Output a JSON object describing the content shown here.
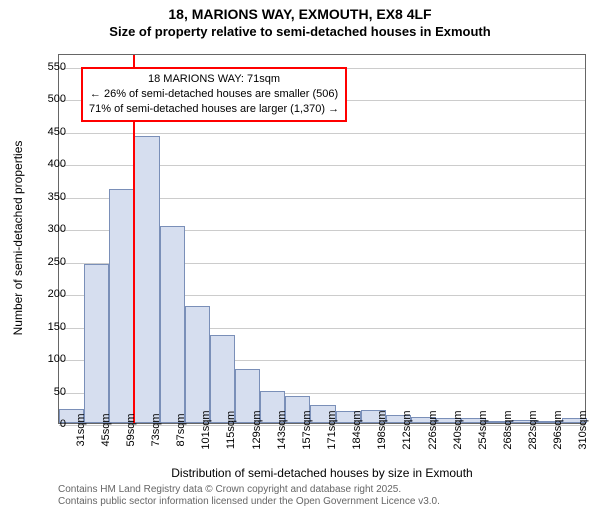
{
  "title_main": "18, MARIONS WAY, EXMOUTH, EX8 4LF",
  "title_sub": "Size of property relative to semi-detached houses in Exmouth",
  "yaxis_label": "Number of semi-detached properties",
  "xaxis_label": "Distribution of semi-detached houses by size in Exmouth",
  "footer_line1": "Contains HM Land Registry data © Crown copyright and database right 2025.",
  "footer_line2": "Contains public sector information licensed under the Open Government Licence v3.0.",
  "chart": {
    "type": "histogram",
    "ylim": [
      0,
      570
    ],
    "yticks": [
      0,
      50,
      100,
      150,
      200,
      250,
      300,
      350,
      400,
      450,
      500,
      550
    ],
    "xcategories": [
      "31sqm",
      "45sqm",
      "59sqm",
      "73sqm",
      "87sqm",
      "101sqm",
      "115sqm",
      "129sqm",
      "143sqm",
      "157sqm",
      "171sqm",
      "184sqm",
      "198sqm",
      "212sqm",
      "226sqm",
      "240sqm",
      "254sqm",
      "268sqm",
      "282sqm",
      "296sqm",
      "310sqm"
    ],
    "values": [
      22,
      245,
      360,
      442,
      303,
      180,
      135,
      83,
      50,
      42,
      28,
      18,
      20,
      12,
      10,
      7,
      8,
      3,
      4,
      0,
      8
    ],
    "bar_color": "#d6deef",
    "bar_border": "#7a8fb8",
    "grid_color": "#cccccc",
    "axis_color": "#666666",
    "marker_color": "#ff0000",
    "marker_category_index": 3,
    "annotation": {
      "line1": "18 MARIONS WAY: 71sqm",
      "line2": "← 26% of semi-detached houses are smaller (506)",
      "line3": "71% of semi-detached houses are larger (1,370) →",
      "border_color": "#ff0000",
      "bg_color": "#ffffff"
    }
  }
}
